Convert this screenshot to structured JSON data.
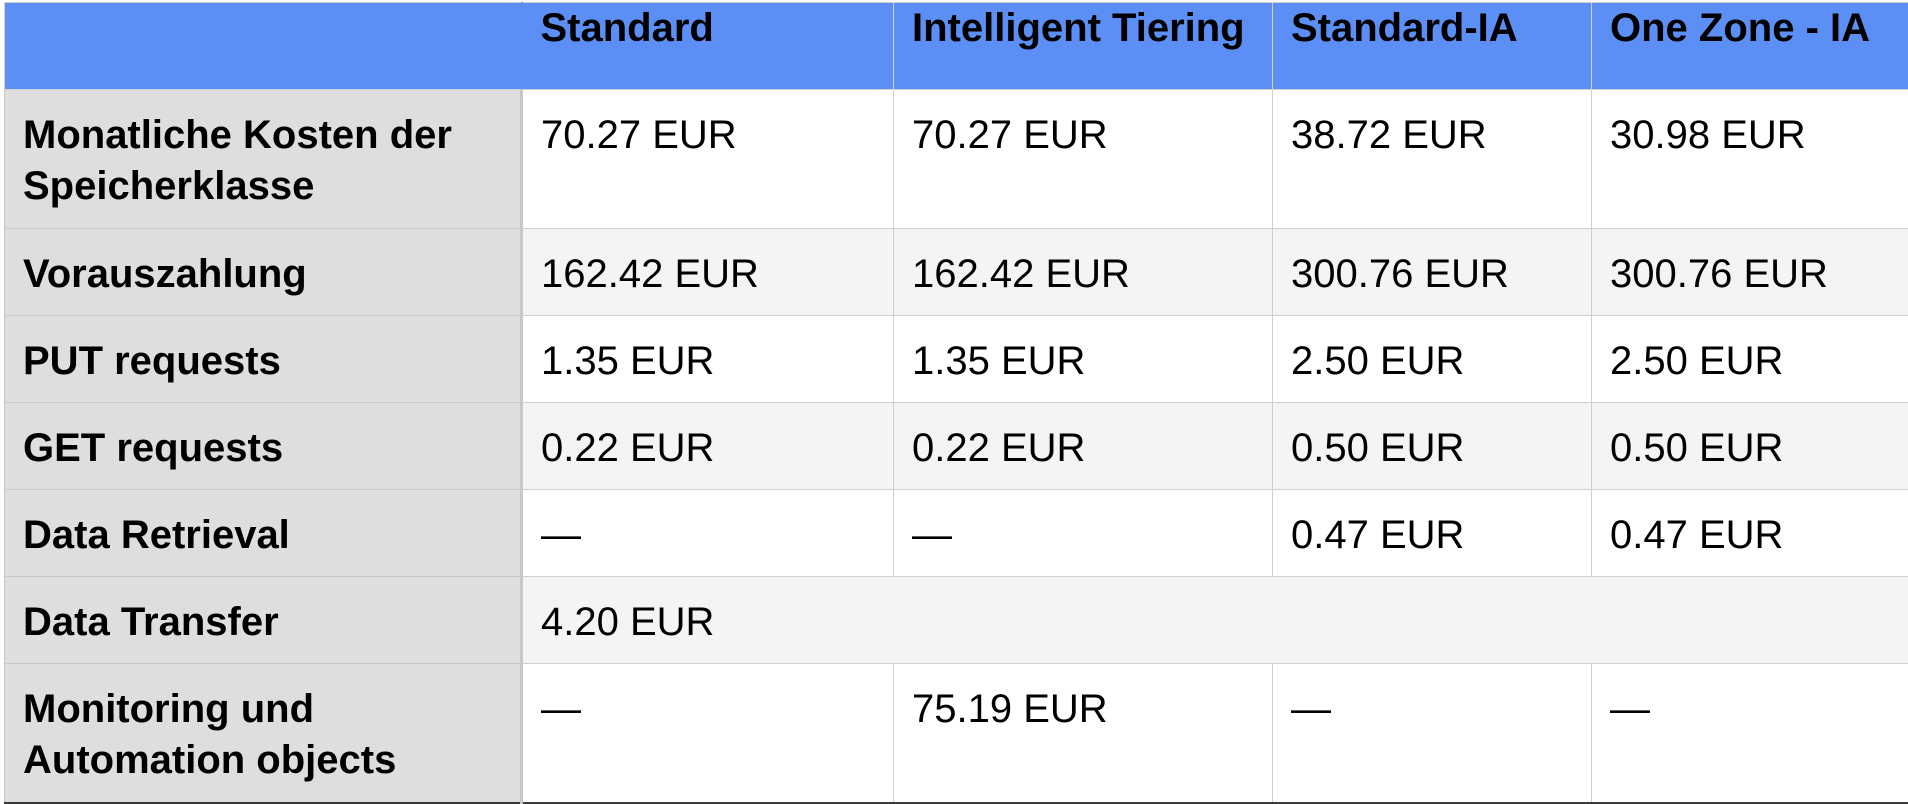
{
  "table": {
    "headers": [
      "",
      "Standard",
      "Intelligent Tiering",
      "Standard-IA",
      "One Zone - IA"
    ],
    "rows": [
      {
        "label": "Monatliche Kosten der Speicherklasse",
        "values": [
          "70.27 EUR",
          "70.27 EUR",
          "38.72 EUR",
          "30.98 EUR"
        ]
      },
      {
        "label": "Vorauszahlung",
        "values": [
          "162.42 EUR",
          "162.42 EUR",
          "300.76 EUR",
          "300.76 EUR"
        ]
      },
      {
        "label": "PUT requests",
        "values": [
          "1.35 EUR",
          "1.35 EUR",
          "2.50 EUR",
          "2.50 EUR"
        ]
      },
      {
        "label": "GET requests",
        "values": [
          "0.22 EUR",
          "0.22 EUR",
          "0.50 EUR",
          "0.50 EUR"
        ]
      },
      {
        "label": "Data Retrieval",
        "values": [
          "—",
          "—",
          "0.47 EUR",
          "0.47 EUR"
        ]
      },
      {
        "label": "Data Transfer",
        "merged_value": "4.20 EUR"
      },
      {
        "label": "Monitoring und Automation objects",
        "values": [
          "—",
          "75.19 EUR",
          "—",
          "—"
        ]
      }
    ]
  },
  "colors": {
    "header_bg": "#5b8ff6",
    "rowhead_bg": "#dedede",
    "stripe_bg": "#f4f4f4"
  }
}
